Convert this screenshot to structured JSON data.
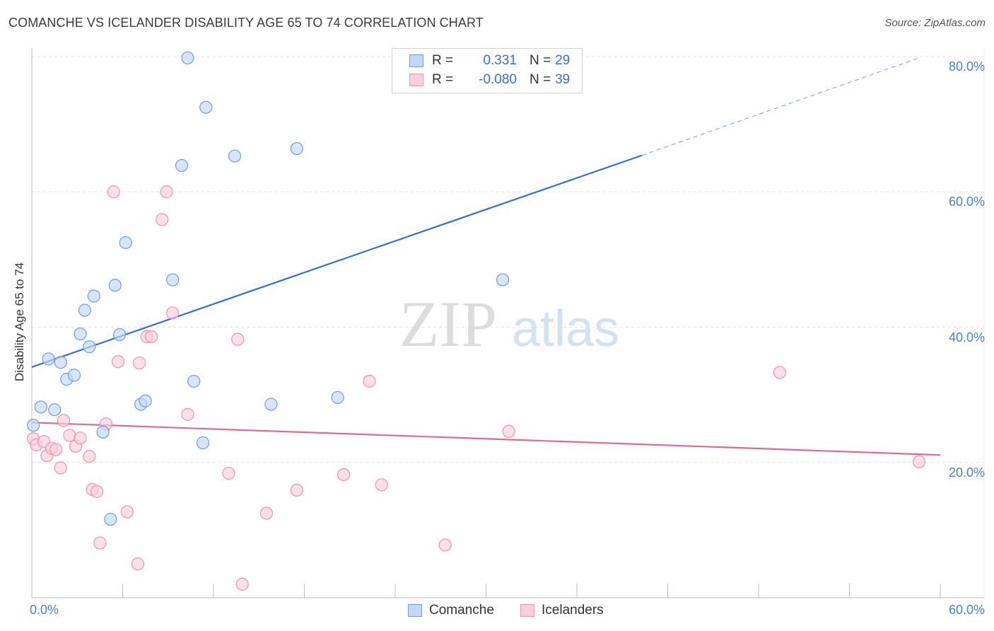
{
  "title": "COMANCHE VS ICELANDER DISABILITY AGE 65 TO 74 CORRELATION CHART",
  "source": "Source: ZipAtlas.com",
  "watermark": {
    "zip": "ZIP",
    "atlas": "atlas"
  },
  "colors": {
    "blue": "#6f9ee6",
    "blue_fill": "#c3d7f6",
    "blue_line": "#3071d4",
    "pink": "#ef93b0",
    "pink_fill": "#f9cfdc",
    "pink_line": "#e5698f",
    "grid": "#e3e3e3",
    "tick_text": "#4a7fd4"
  },
  "stats": [
    {
      "series": "Comanche",
      "r_label": "R =",
      "r_value": "0.331",
      "n_label": "N =",
      "n_value": "29"
    },
    {
      "series": "Icelanders",
      "r_label": "R =",
      "r_value": "-0.080",
      "n_label": "N =",
      "n_value": "39"
    }
  ],
  "legend": [
    {
      "label": "Comanche"
    },
    {
      "label": "Icelanders"
    }
  ],
  "chart_data": {
    "type": "scatter",
    "title": "COMANCHE VS ICELANDER DISABILITY AGE 65 TO 74 CORRELATION CHART",
    "xlabel": "",
    "ylabel": "Disability Age 65 to 74",
    "xlim": [
      0,
      60
    ],
    "ylim": [
      0,
      80
    ],
    "x_tick_labels": [
      "0.0%",
      "60.0%"
    ],
    "y_ticks": [
      {
        "value": 20,
        "label": "20.0%"
      },
      {
        "value": 40,
        "label": "40.0%"
      },
      {
        "value": 60,
        "label": "60.0%"
      },
      {
        "value": 80,
        "label": "80.0%"
      }
    ],
    "grid": true,
    "series": [
      {
        "name": "Comanche",
        "r": 0.331,
        "n": 29,
        "points": [
          [
            0.1,
            25.5
          ],
          [
            0.6,
            28.2
          ],
          [
            1.1,
            35.3
          ],
          [
            1.5,
            27.8
          ],
          [
            1.9,
            34.8
          ],
          [
            2.3,
            32.3
          ],
          [
            2.8,
            32.9
          ],
          [
            3.2,
            39.0
          ],
          [
            3.5,
            42.5
          ],
          [
            3.8,
            37.1
          ],
          [
            4.1,
            44.6
          ],
          [
            4.7,
            24.5
          ],
          [
            5.2,
            11.6
          ],
          [
            5.5,
            46.2
          ],
          [
            5.8,
            38.9
          ],
          [
            6.2,
            52.5
          ],
          [
            7.2,
            28.6
          ],
          [
            7.5,
            29.1
          ],
          [
            9.3,
            47.0
          ],
          [
            9.9,
            63.9
          ],
          [
            10.3,
            79.8
          ],
          [
            10.7,
            32.0
          ],
          [
            11.3,
            22.9
          ],
          [
            11.5,
            72.5
          ],
          [
            13.4,
            65.3
          ],
          [
            15.8,
            28.6
          ],
          [
            17.5,
            66.4
          ],
          [
            20.2,
            29.6
          ],
          [
            31.1,
            47.0
          ]
        ],
        "trend": {
          "x0": 0,
          "y0": 34.1,
          "x1": 40.3,
          "y1": 65.4,
          "dashed_to_x": 58.6,
          "dashed_to_y": 79.8
        }
      },
      {
        "name": "Icelanders",
        "r": -0.08,
        "n": 39,
        "points": [
          [
            0.1,
            23.5
          ],
          [
            0.3,
            22.6
          ],
          [
            0.8,
            23.1
          ],
          [
            1.0,
            21.0
          ],
          [
            1.3,
            22.1
          ],
          [
            1.6,
            21.9
          ],
          [
            1.9,
            19.2
          ],
          [
            2.1,
            26.2
          ],
          [
            2.5,
            24.0
          ],
          [
            2.9,
            22.4
          ],
          [
            3.2,
            23.6
          ],
          [
            3.8,
            20.9
          ],
          [
            4.0,
            16.0
          ],
          [
            4.3,
            15.7
          ],
          [
            4.5,
            8.1
          ],
          [
            4.9,
            25.7
          ],
          [
            5.4,
            60.0
          ],
          [
            5.7,
            34.9
          ],
          [
            6.3,
            12.7
          ],
          [
            7.0,
            5.0
          ],
          [
            7.1,
            34.7
          ],
          [
            7.6,
            38.6
          ],
          [
            7.9,
            38.6
          ],
          [
            8.6,
            55.9
          ],
          [
            8.9,
            60.0
          ],
          [
            9.3,
            42.1
          ],
          [
            10.3,
            27.1
          ],
          [
            13.0,
            18.4
          ],
          [
            13.6,
            38.2
          ],
          [
            13.9,
            2.0
          ],
          [
            15.5,
            12.5
          ],
          [
            17.5,
            15.9
          ],
          [
            20.6,
            18.2
          ],
          [
            22.3,
            32.0
          ],
          [
            23.1,
            16.7
          ],
          [
            27.3,
            7.8
          ],
          [
            31.5,
            24.6
          ],
          [
            49.4,
            33.3
          ],
          [
            58.6,
            20.1
          ]
        ],
        "trend": {
          "x0": 0,
          "y0": 25.9,
          "x1": 60,
          "y1": 21.1
        }
      }
    ]
  }
}
